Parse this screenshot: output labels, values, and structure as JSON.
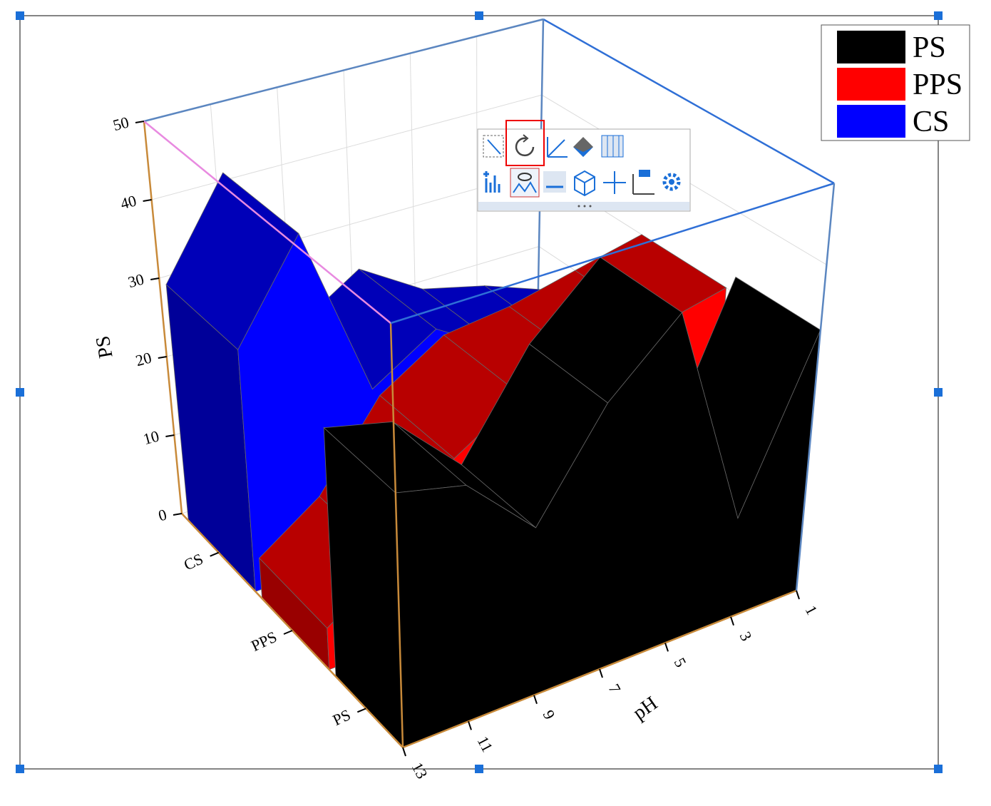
{
  "chart_data": {
    "type": "wall3d",
    "y_label": "PS",
    "x_label": "pH",
    "x": [
      1,
      3,
      5,
      7,
      9,
      11,
      13
    ],
    "xlim": [
      1,
      13
    ],
    "xticks": [
      1,
      3,
      5,
      7,
      9,
      11,
      13
    ],
    "ylim": [
      0,
      50
    ],
    "yticks": [
      0,
      10,
      20,
      30,
      40,
      50
    ],
    "z_categories": [
      "CS",
      "PPS",
      "PS"
    ],
    "grid": true,
    "series": [
      {
        "name": "PS",
        "color": "#000000",
        "values": [
          32,
          12,
          40,
          32,
          20,
          28,
          30
        ]
      },
      {
        "name": "PPS",
        "color": "#ff0000",
        "values": [
          30,
          28,
          26,
          25,
          20,
          10,
          5
        ]
      },
      {
        "name": "CS",
        "color": "#0000ff",
        "values": [
          15,
          18,
          20,
          25,
          20,
          42,
          30
        ]
      }
    ]
  }
}
